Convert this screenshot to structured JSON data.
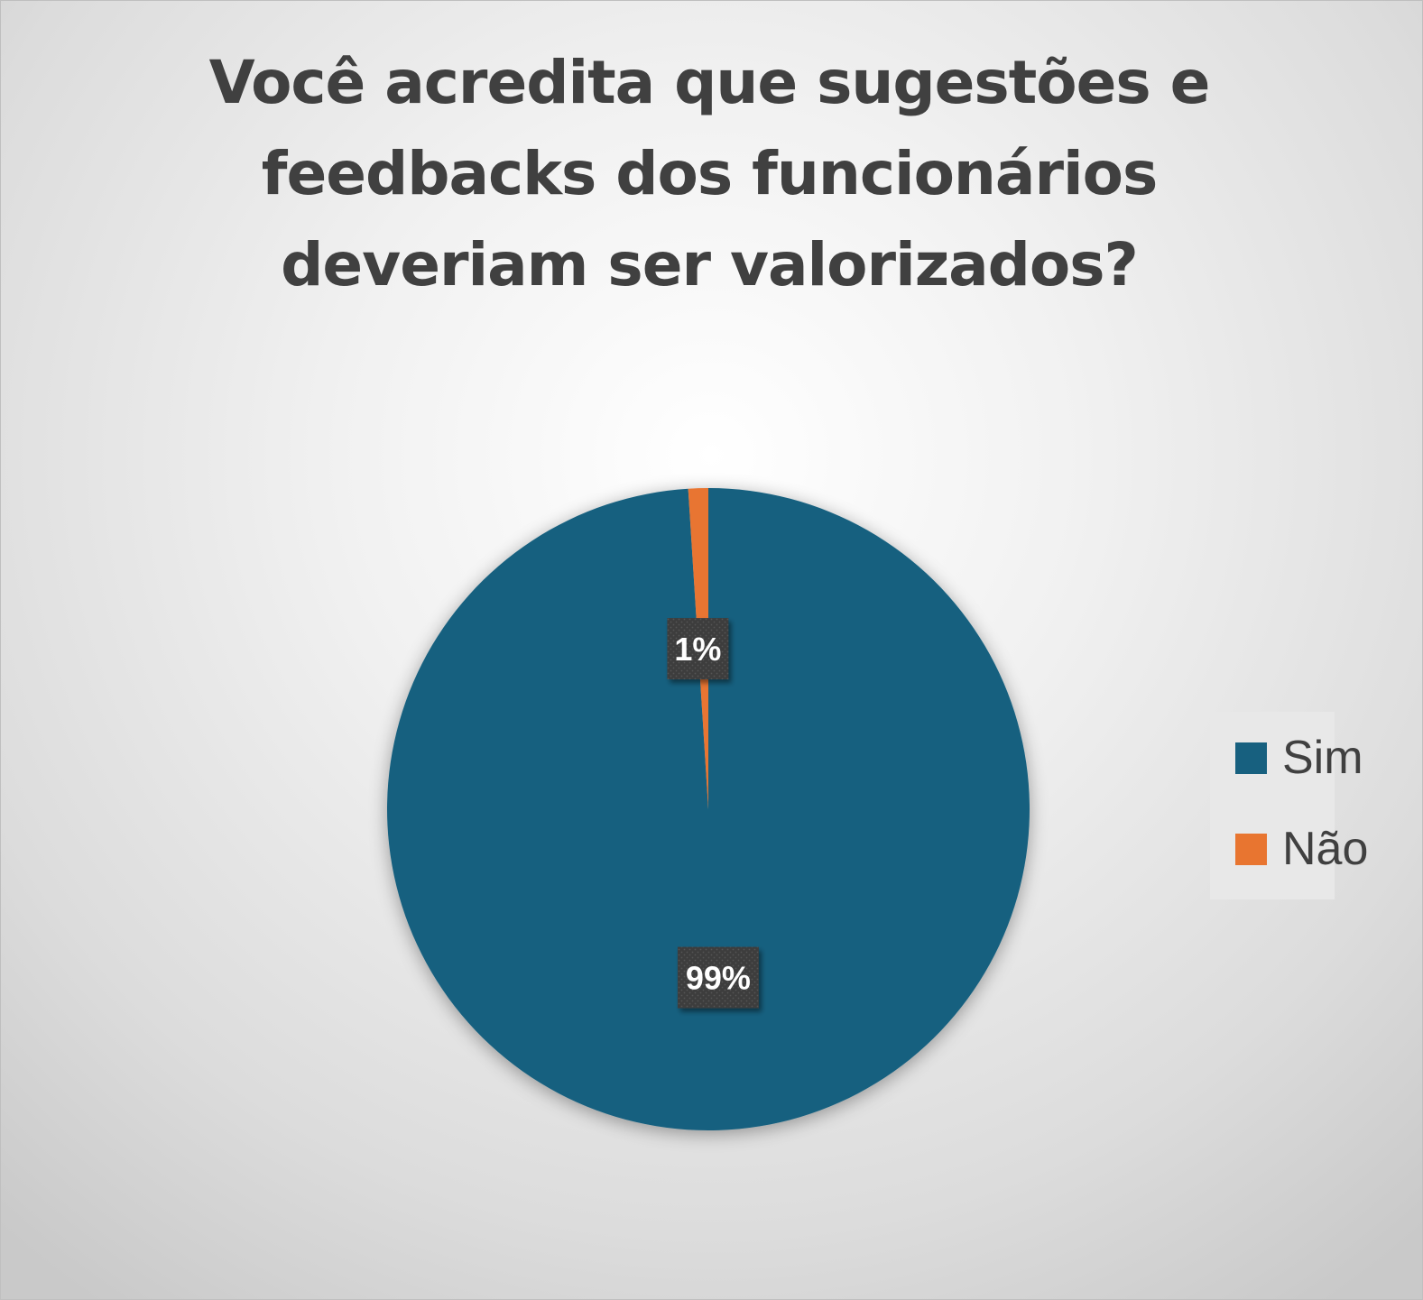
{
  "chart_data": {
    "type": "pie",
    "title": "Você acredita que sugestões e feedbacks dos funcionários deveriam ser valorizados?",
    "categories": [
      "Sim",
      "Não"
    ],
    "values": [
      99,
      1
    ],
    "data_labels": [
      "99%",
      "1%"
    ],
    "colors": [
      "#17607f",
      "#e87530"
    ],
    "legend": {
      "position": "right"
    },
    "data_label_style": {
      "background": "#3c3c3c",
      "text_color": "#ffffff"
    }
  }
}
